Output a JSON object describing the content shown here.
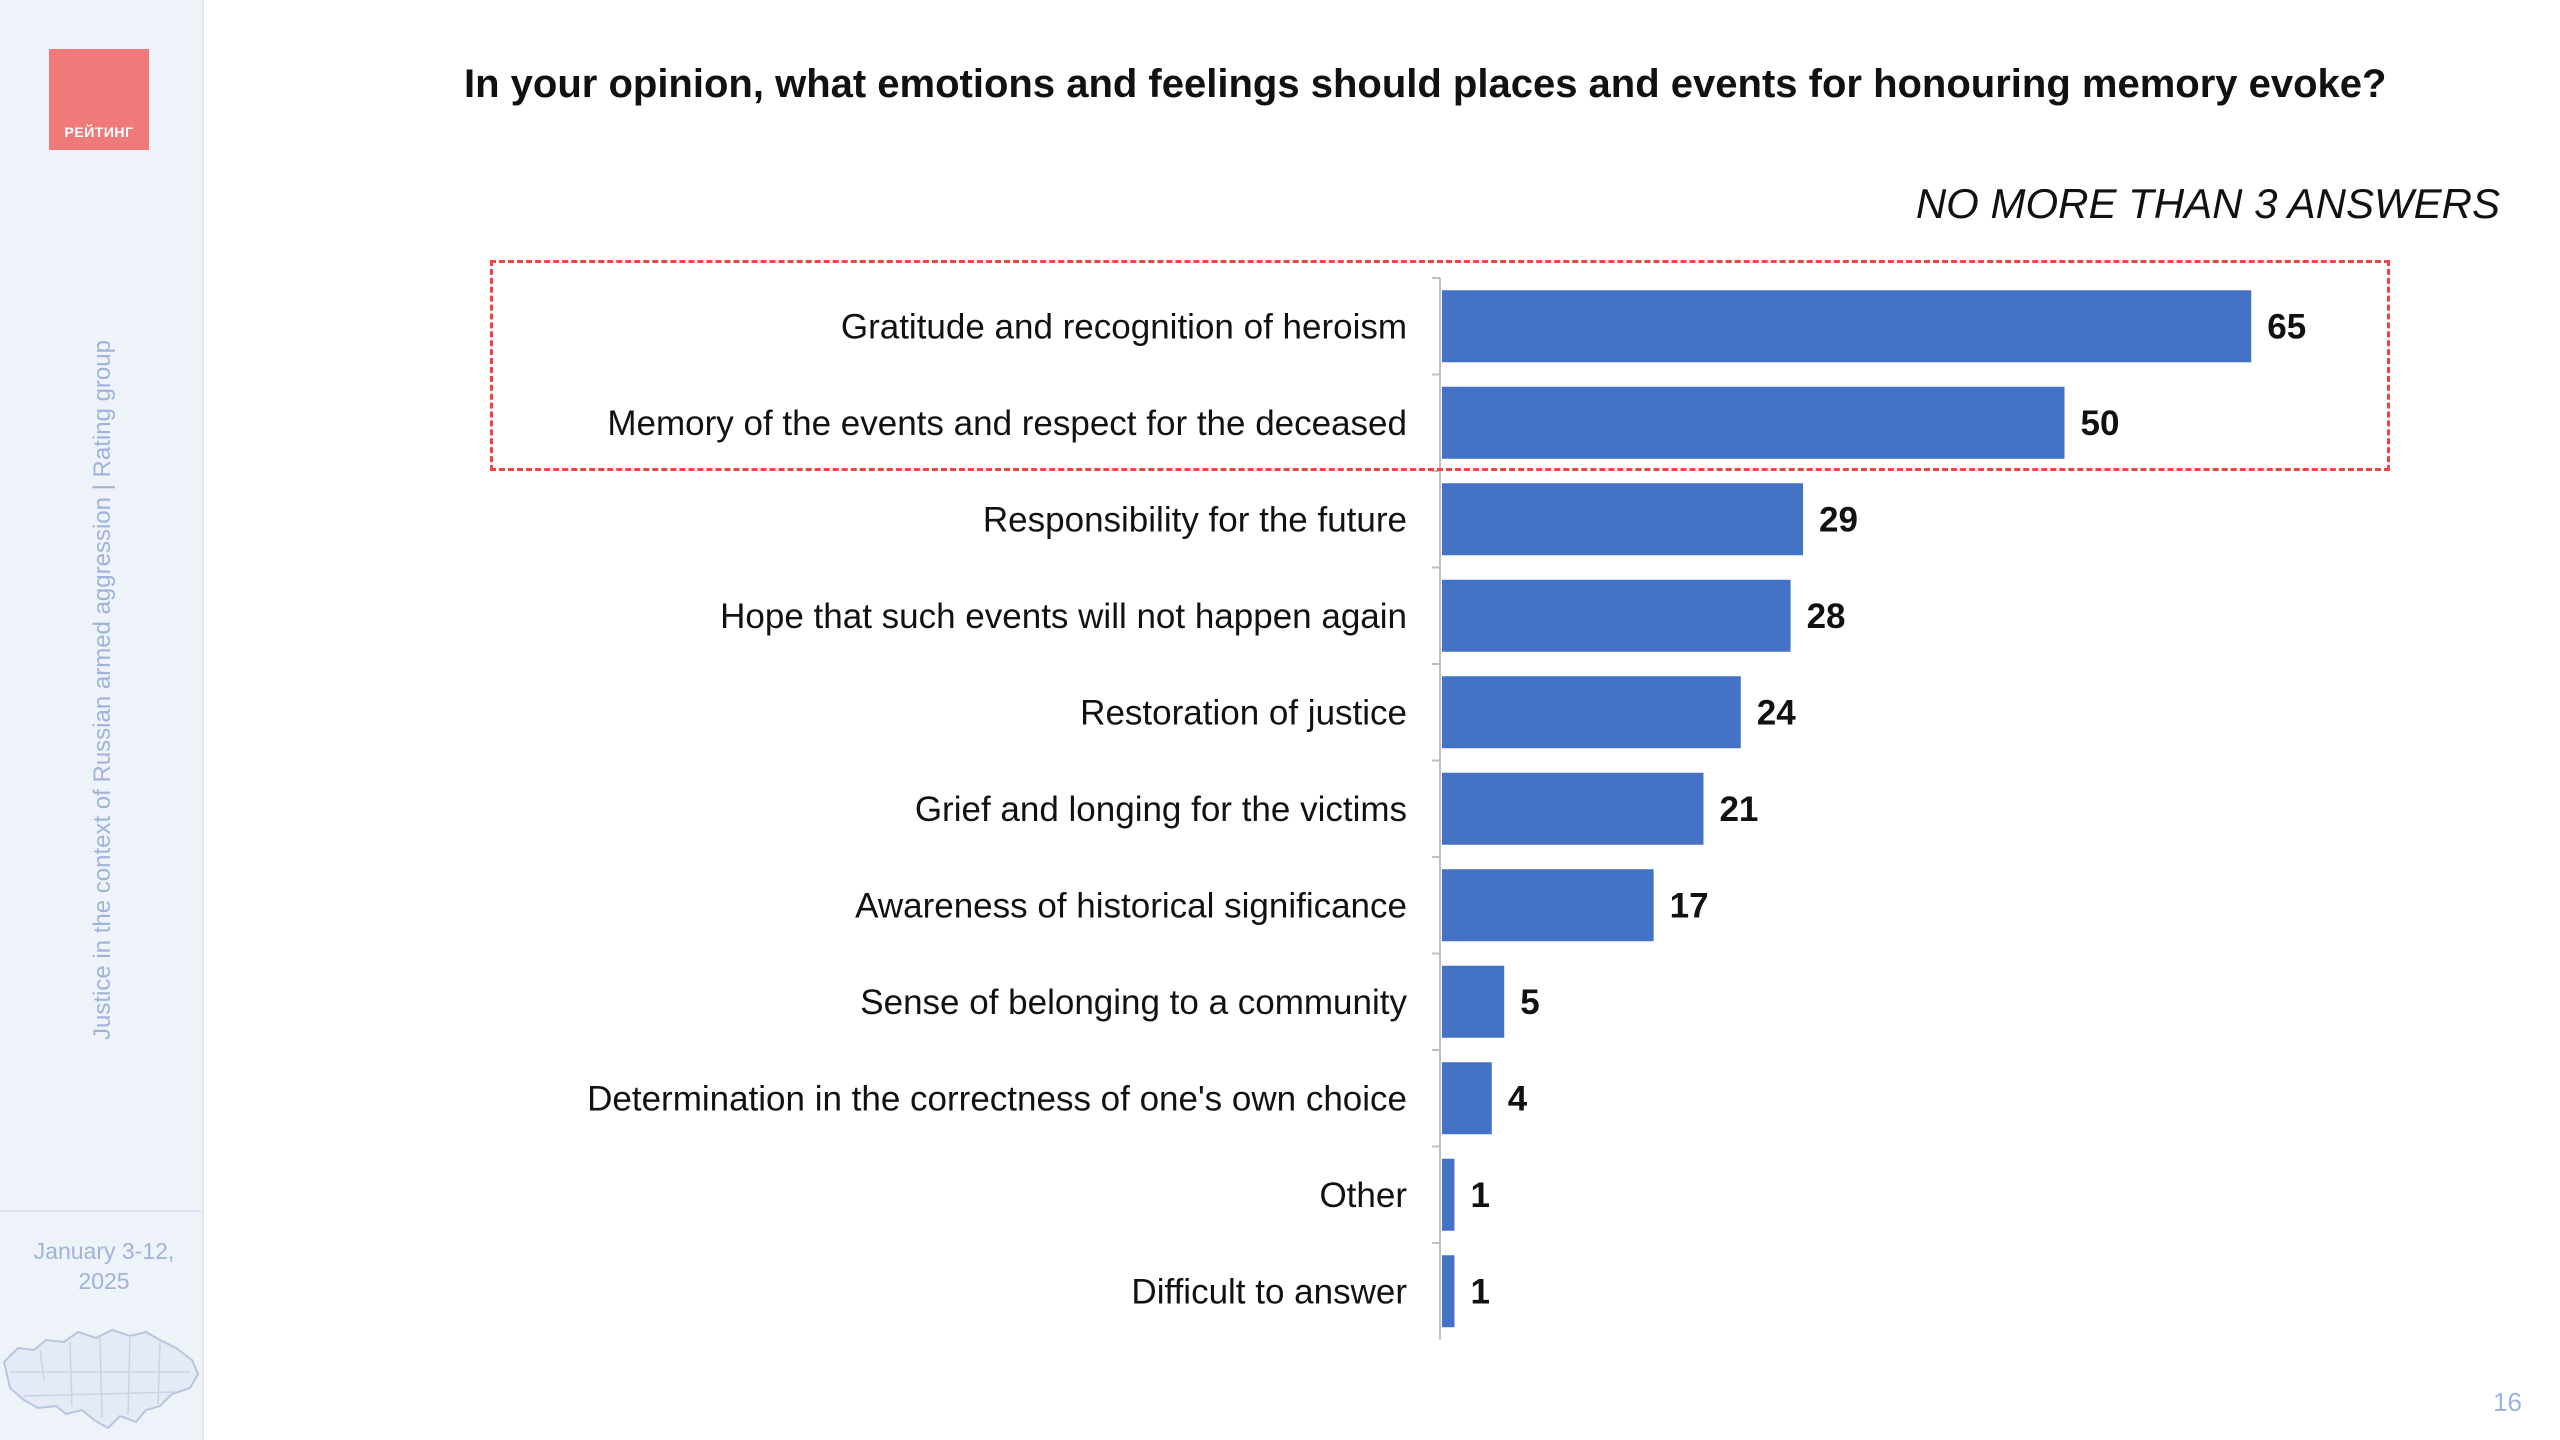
{
  "sidebar": {
    "logo_text": "РЕЙТИНГ",
    "vertical_caption": "Justice in the context of Russian armed aggression | Rating group",
    "date_line1": "January 3-12,",
    "date_line2": "2025",
    "map_icon": "ukraine-map-icon"
  },
  "page_number": "16",
  "colors": {
    "bar": "#4472c4",
    "highlight": "#ee4444",
    "sidebar_bg": "#eef2f9",
    "sidebar_text": "#9fb3da",
    "logo_bg": "#f07a7a"
  },
  "chart_data": {
    "type": "bar",
    "orientation": "horizontal",
    "title": "In your opinion, what emotions and feelings should places and events for honouring memory evoke?",
    "subtitle": "NO MORE THAN 3 ANSWERS",
    "categories": [
      "Gratitude and recognition of heroism",
      "Memory of the events and respect for the deceased",
      "Responsibility for the future",
      "Hope that such events will not happen again",
      "Restoration of justice",
      "Grief and longing for the victims",
      "Awareness of historical significance",
      "Sense of belonging to a community",
      "Determination in the correctness of one's own choice",
      "Other",
      "Difficult to answer"
    ],
    "values": [
      65,
      50,
      29,
      28,
      24,
      21,
      17,
      5,
      4,
      1,
      1
    ],
    "highlighted": [
      "Gratitude and recognition of heroism",
      "Memory of the events and respect for the deceased"
    ],
    "xlim": [
      0,
      100
    ],
    "grid": false,
    "legend": "none"
  }
}
